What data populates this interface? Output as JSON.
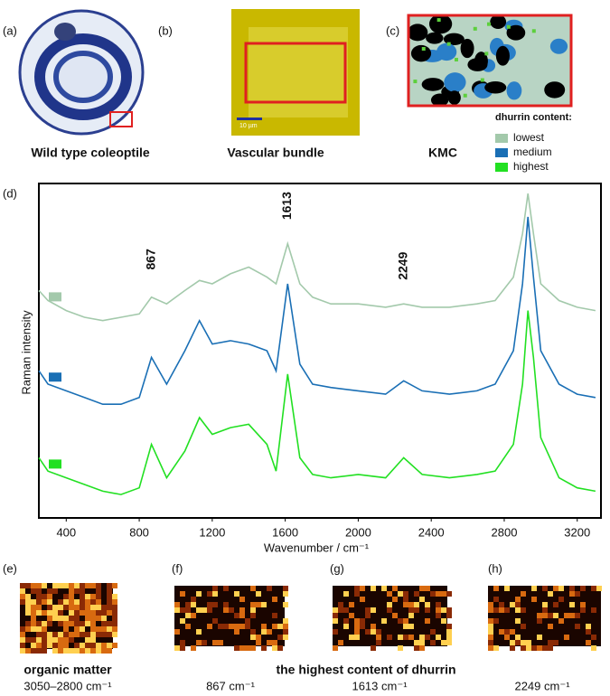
{
  "panels": [
    {
      "label": "(a)",
      "caption": "Wild type coleoptile"
    },
    {
      "label": "(b)",
      "caption": "Vascular bundle",
      "scale": "10 µm"
    },
    {
      "label": "(c)",
      "caption": "KMC"
    },
    {
      "label": "(d)"
    },
    {
      "label": "(e)",
      "caption": "organic matter",
      "sub": "3050–2800 cm⁻¹"
    },
    {
      "label": "(f)",
      "sub": "867 cm⁻¹"
    },
    {
      "label": "(g)",
      "sub": "1613 cm⁻¹"
    },
    {
      "label": "(h)",
      "sub": "2249 cm⁻¹"
    }
  ],
  "group_caption": "the highest content of dhurrin",
  "chart_data": {
    "type": "line",
    "x_label": "Wavenumber / cm⁻¹",
    "y_label": "Raman intensity",
    "legend_title": "dhurrin content:",
    "x": [
      250,
      300,
      400,
      500,
      600,
      700,
      800,
      867,
      950,
      1050,
      1130,
      1200,
      1300,
      1400,
      1500,
      1550,
      1613,
      1680,
      1750,
      1850,
      2000,
      2150,
      2249,
      2350,
      2500,
      2650,
      2750,
      2850,
      2900,
      2930,
      2960,
      3000,
      3100,
      3200,
      3300
    ],
    "series": [
      {
        "name": "highest",
        "color": "#22e022",
        "values": [
          18,
          14,
          12,
          10,
          8,
          7,
          9,
          22,
          12,
          20,
          30,
          25,
          27,
          28,
          22,
          14,
          43,
          18,
          13,
          12,
          13,
          12,
          18,
          13,
          12,
          13,
          14,
          22,
          40,
          62,
          48,
          24,
          12,
          9,
          8
        ]
      },
      {
        "name": "medium",
        "color": "#1a6fb5",
        "values": [
          44,
          40,
          38,
          36,
          34,
          34,
          36,
          48,
          40,
          50,
          59,
          52,
          53,
          52,
          50,
          44,
          70,
          46,
          40,
          39,
          38,
          37,
          41,
          38,
          37,
          38,
          40,
          50,
          70,
          90,
          72,
          50,
          40,
          37,
          36
        ]
      },
      {
        "name": "lowest",
        "color": "#a3c9ab",
        "values": [
          68,
          65,
          62,
          60,
          59,
          60,
          61,
          66,
          64,
          68,
          71,
          70,
          73,
          75,
          72,
          70,
          82,
          70,
          66,
          64,
          64,
          63,
          64,
          63,
          63,
          64,
          65,
          72,
          85,
          97,
          85,
          70,
          65,
          63,
          62
        ]
      }
    ],
    "peak_labels": [
      867,
      1613,
      2249
    ],
    "xlim": [
      250,
      3330
    ],
    "ylim": [
      0,
      100
    ],
    "xticks": [
      400,
      800,
      1200,
      1600,
      2000,
      2400,
      2800,
      3200
    ]
  }
}
